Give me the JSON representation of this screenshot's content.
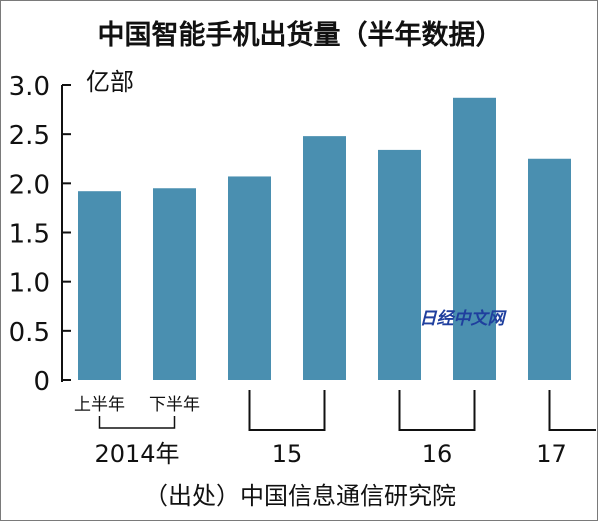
{
  "chart_data": {
    "type": "bar",
    "title": "中国智能手机出货量（半年数据）",
    "unit": "亿部",
    "categories": [
      "2014上半年",
      "2014下半年",
      "2015上半年",
      "2015下半年",
      "2016上半年",
      "2016下半年",
      "2017上半年"
    ],
    "values": [
      1.92,
      1.95,
      2.07,
      2.48,
      2.34,
      2.87,
      2.25
    ],
    "ylim": [
      0,
      3.0
    ],
    "yticks": [
      "0",
      "0.5",
      "1.0",
      "1.5",
      "2.0",
      "2.5",
      "3.0"
    ],
    "ytick_values": [
      0,
      0.5,
      1.0,
      1.5,
      2.0,
      2.5,
      3.0
    ],
    "half_labels": [
      "上半年",
      "下半年"
    ],
    "year_labels": [
      "2014年",
      "15",
      "16",
      "17"
    ],
    "bar_color": "#4a8fb0",
    "source": "（出处）中国信息通信研究院",
    "watermark": "日经中文网"
  }
}
